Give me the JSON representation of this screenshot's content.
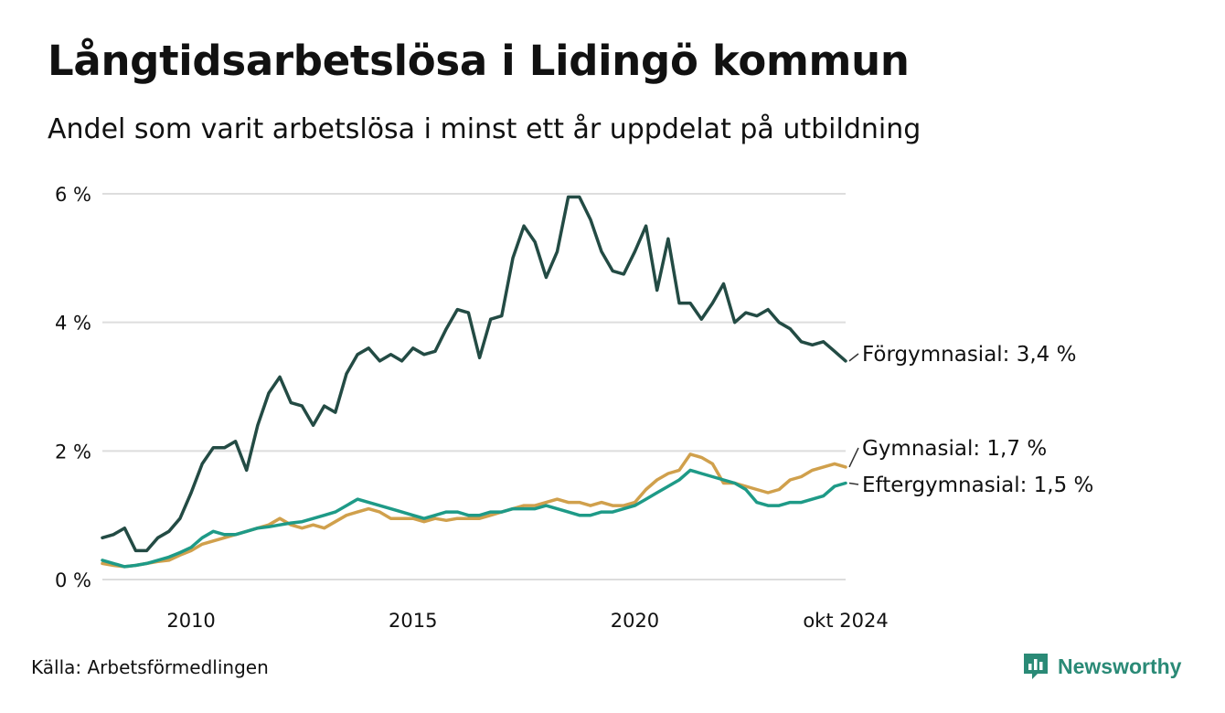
{
  "title": "Långtidsarbetslösa i Lidingö kommun",
  "subtitle": "Andel som varit arbetslösa i minst ett år uppdelat på utbildning",
  "source": "Källa: Arbetsförmedlingen",
  "brand": "Newsworthy",
  "colors": {
    "forgymnasial": "#234b44",
    "gymnasial": "#d0a04c",
    "eftergymnasial": "#1e9a87",
    "grid": "#dddddd"
  },
  "chart_data": {
    "type": "line",
    "title": "Långtidsarbetslösa i Lidingö kommun",
    "subtitle": "Andel som varit arbetslösa i minst ett år uppdelat på utbildning",
    "xlabel": "",
    "ylabel": "",
    "x_unit": "year",
    "xlim": [
      2008.0,
      2024.75
    ],
    "ylim": [
      0,
      6
    ],
    "grid": true,
    "y_ticks": [
      0,
      2,
      4,
      6
    ],
    "y_tick_labels": [
      "0 %",
      "2 %",
      "4 %",
      "6 %"
    ],
    "x_ticks": [
      2010,
      2015,
      2020,
      2024.75
    ],
    "x_tick_labels": [
      "2010",
      "2015",
      "2020",
      "okt 2024"
    ],
    "series": [
      {
        "name": "Förgymnasial",
        "label": "Förgymnasial: 3,4 %",
        "color": "#234b44",
        "x": [
          2008.0,
          2008.25,
          2008.5,
          2008.75,
          2009.0,
          2009.25,
          2009.5,
          2009.75,
          2010.0,
          2010.25,
          2010.5,
          2010.75,
          2011.0,
          2011.25,
          2011.5,
          2011.75,
          2012.0,
          2012.25,
          2012.5,
          2012.75,
          2013.0,
          2013.25,
          2013.5,
          2013.75,
          2014.0,
          2014.25,
          2014.5,
          2014.75,
          2015.0,
          2015.25,
          2015.5,
          2015.75,
          2016.0,
          2016.25,
          2016.5,
          2016.75,
          2017.0,
          2017.25,
          2017.5,
          2017.75,
          2018.0,
          2018.25,
          2018.5,
          2018.75,
          2019.0,
          2019.25,
          2019.5,
          2019.75,
          2020.0,
          2020.25,
          2020.5,
          2020.75,
          2021.0,
          2021.25,
          2021.5,
          2021.75,
          2022.0,
          2022.25,
          2022.5,
          2022.75,
          2023.0,
          2023.25,
          2023.5,
          2023.75,
          2024.0,
          2024.25,
          2024.5,
          2024.75
        ],
        "values": [
          0.65,
          0.7,
          0.8,
          0.45,
          0.45,
          0.65,
          0.75,
          0.95,
          1.35,
          1.8,
          2.05,
          2.05,
          2.15,
          1.7,
          2.4,
          2.9,
          3.15,
          2.75,
          2.7,
          2.4,
          2.7,
          2.6,
          3.2,
          3.5,
          3.6,
          3.4,
          3.5,
          3.4,
          3.6,
          3.5,
          3.55,
          3.9,
          4.2,
          4.15,
          3.45,
          4.05,
          4.1,
          5.0,
          5.5,
          5.25,
          4.7,
          5.1,
          5.95,
          5.95,
          5.6,
          5.1,
          4.8,
          4.75,
          5.1,
          5.5,
          4.5,
          5.3,
          4.3,
          4.3,
          4.05,
          4.3,
          4.6,
          4.0,
          4.15,
          4.1,
          4.2,
          4.0,
          3.9,
          3.7,
          3.65,
          3.7,
          3.55,
          3.4
        ]
      },
      {
        "name": "Gymnasial",
        "label": "Gymnasial: 1,7 %",
        "color": "#d0a04c",
        "x": [
          2008.0,
          2008.25,
          2008.5,
          2008.75,
          2009.0,
          2009.25,
          2009.5,
          2009.75,
          2010.0,
          2010.25,
          2010.5,
          2010.75,
          2011.0,
          2011.25,
          2011.5,
          2011.75,
          2012.0,
          2012.25,
          2012.5,
          2012.75,
          2013.0,
          2013.25,
          2013.5,
          2013.75,
          2014.0,
          2014.25,
          2014.5,
          2014.75,
          2015.0,
          2015.25,
          2015.5,
          2015.75,
          2016.0,
          2016.25,
          2016.5,
          2016.75,
          2017.0,
          2017.25,
          2017.5,
          2017.75,
          2018.0,
          2018.25,
          2018.5,
          2018.75,
          2019.0,
          2019.25,
          2019.5,
          2019.75,
          2020.0,
          2020.25,
          2020.5,
          2020.75,
          2021.0,
          2021.25,
          2021.5,
          2021.75,
          2022.0,
          2022.25,
          2022.5,
          2022.75,
          2023.0,
          2023.25,
          2023.5,
          2023.75,
          2024.0,
          2024.25,
          2024.5,
          2024.75
        ],
        "values": [
          0.25,
          0.22,
          0.2,
          0.22,
          0.25,
          0.28,
          0.3,
          0.38,
          0.45,
          0.55,
          0.6,
          0.65,
          0.7,
          0.75,
          0.8,
          0.85,
          0.95,
          0.85,
          0.8,
          0.85,
          0.8,
          0.9,
          1.0,
          1.05,
          1.1,
          1.05,
          0.95,
          0.95,
          0.95,
          0.9,
          0.95,
          0.92,
          0.95,
          0.95,
          0.95,
          1.0,
          1.05,
          1.1,
          1.15,
          1.15,
          1.2,
          1.25,
          1.2,
          1.2,
          1.15,
          1.2,
          1.15,
          1.15,
          1.2,
          1.4,
          1.55,
          1.65,
          1.7,
          1.95,
          1.9,
          1.8,
          1.5,
          1.5,
          1.45,
          1.4,
          1.35,
          1.4,
          1.55,
          1.6,
          1.7,
          1.75,
          1.8,
          1.75
        ]
      },
      {
        "name": "Eftergymnasial",
        "label": "Eftergymnasial: 1,5 %",
        "color": "#1e9a87",
        "x": [
          2008.0,
          2008.25,
          2008.5,
          2008.75,
          2009.0,
          2009.25,
          2009.5,
          2009.75,
          2010.0,
          2010.25,
          2010.5,
          2010.75,
          2011.0,
          2011.25,
          2011.5,
          2011.75,
          2012.0,
          2012.25,
          2012.5,
          2012.75,
          2013.0,
          2013.25,
          2013.5,
          2013.75,
          2014.0,
          2014.25,
          2014.5,
          2014.75,
          2015.0,
          2015.25,
          2015.5,
          2015.75,
          2016.0,
          2016.25,
          2016.5,
          2016.75,
          2017.0,
          2017.25,
          2017.5,
          2017.75,
          2018.0,
          2018.25,
          2018.5,
          2018.75,
          2019.0,
          2019.25,
          2019.5,
          2019.75,
          2020.0,
          2020.25,
          2020.5,
          2020.75,
          2021.0,
          2021.25,
          2021.5,
          2021.75,
          2022.0,
          2022.25,
          2022.5,
          2022.75,
          2023.0,
          2023.25,
          2023.5,
          2023.75,
          2024.0,
          2024.25,
          2024.5,
          2024.75
        ],
        "values": [
          0.3,
          0.25,
          0.2,
          0.22,
          0.25,
          0.3,
          0.35,
          0.42,
          0.5,
          0.65,
          0.75,
          0.7,
          0.7,
          0.75,
          0.8,
          0.82,
          0.85,
          0.88,
          0.9,
          0.95,
          1.0,
          1.05,
          1.15,
          1.25,
          1.2,
          1.15,
          1.1,
          1.05,
          1.0,
          0.95,
          1.0,
          1.05,
          1.05,
          1.0,
          1.0,
          1.05,
          1.05,
          1.1,
          1.1,
          1.1,
          1.15,
          1.1,
          1.05,
          1.0,
          1.0,
          1.05,
          1.05,
          1.1,
          1.15,
          1.25,
          1.35,
          1.45,
          1.55,
          1.7,
          1.65,
          1.6,
          1.55,
          1.5,
          1.4,
          1.2,
          1.15,
          1.15,
          1.2,
          1.2,
          1.25,
          1.3,
          1.45,
          1.5
        ]
      }
    ]
  }
}
